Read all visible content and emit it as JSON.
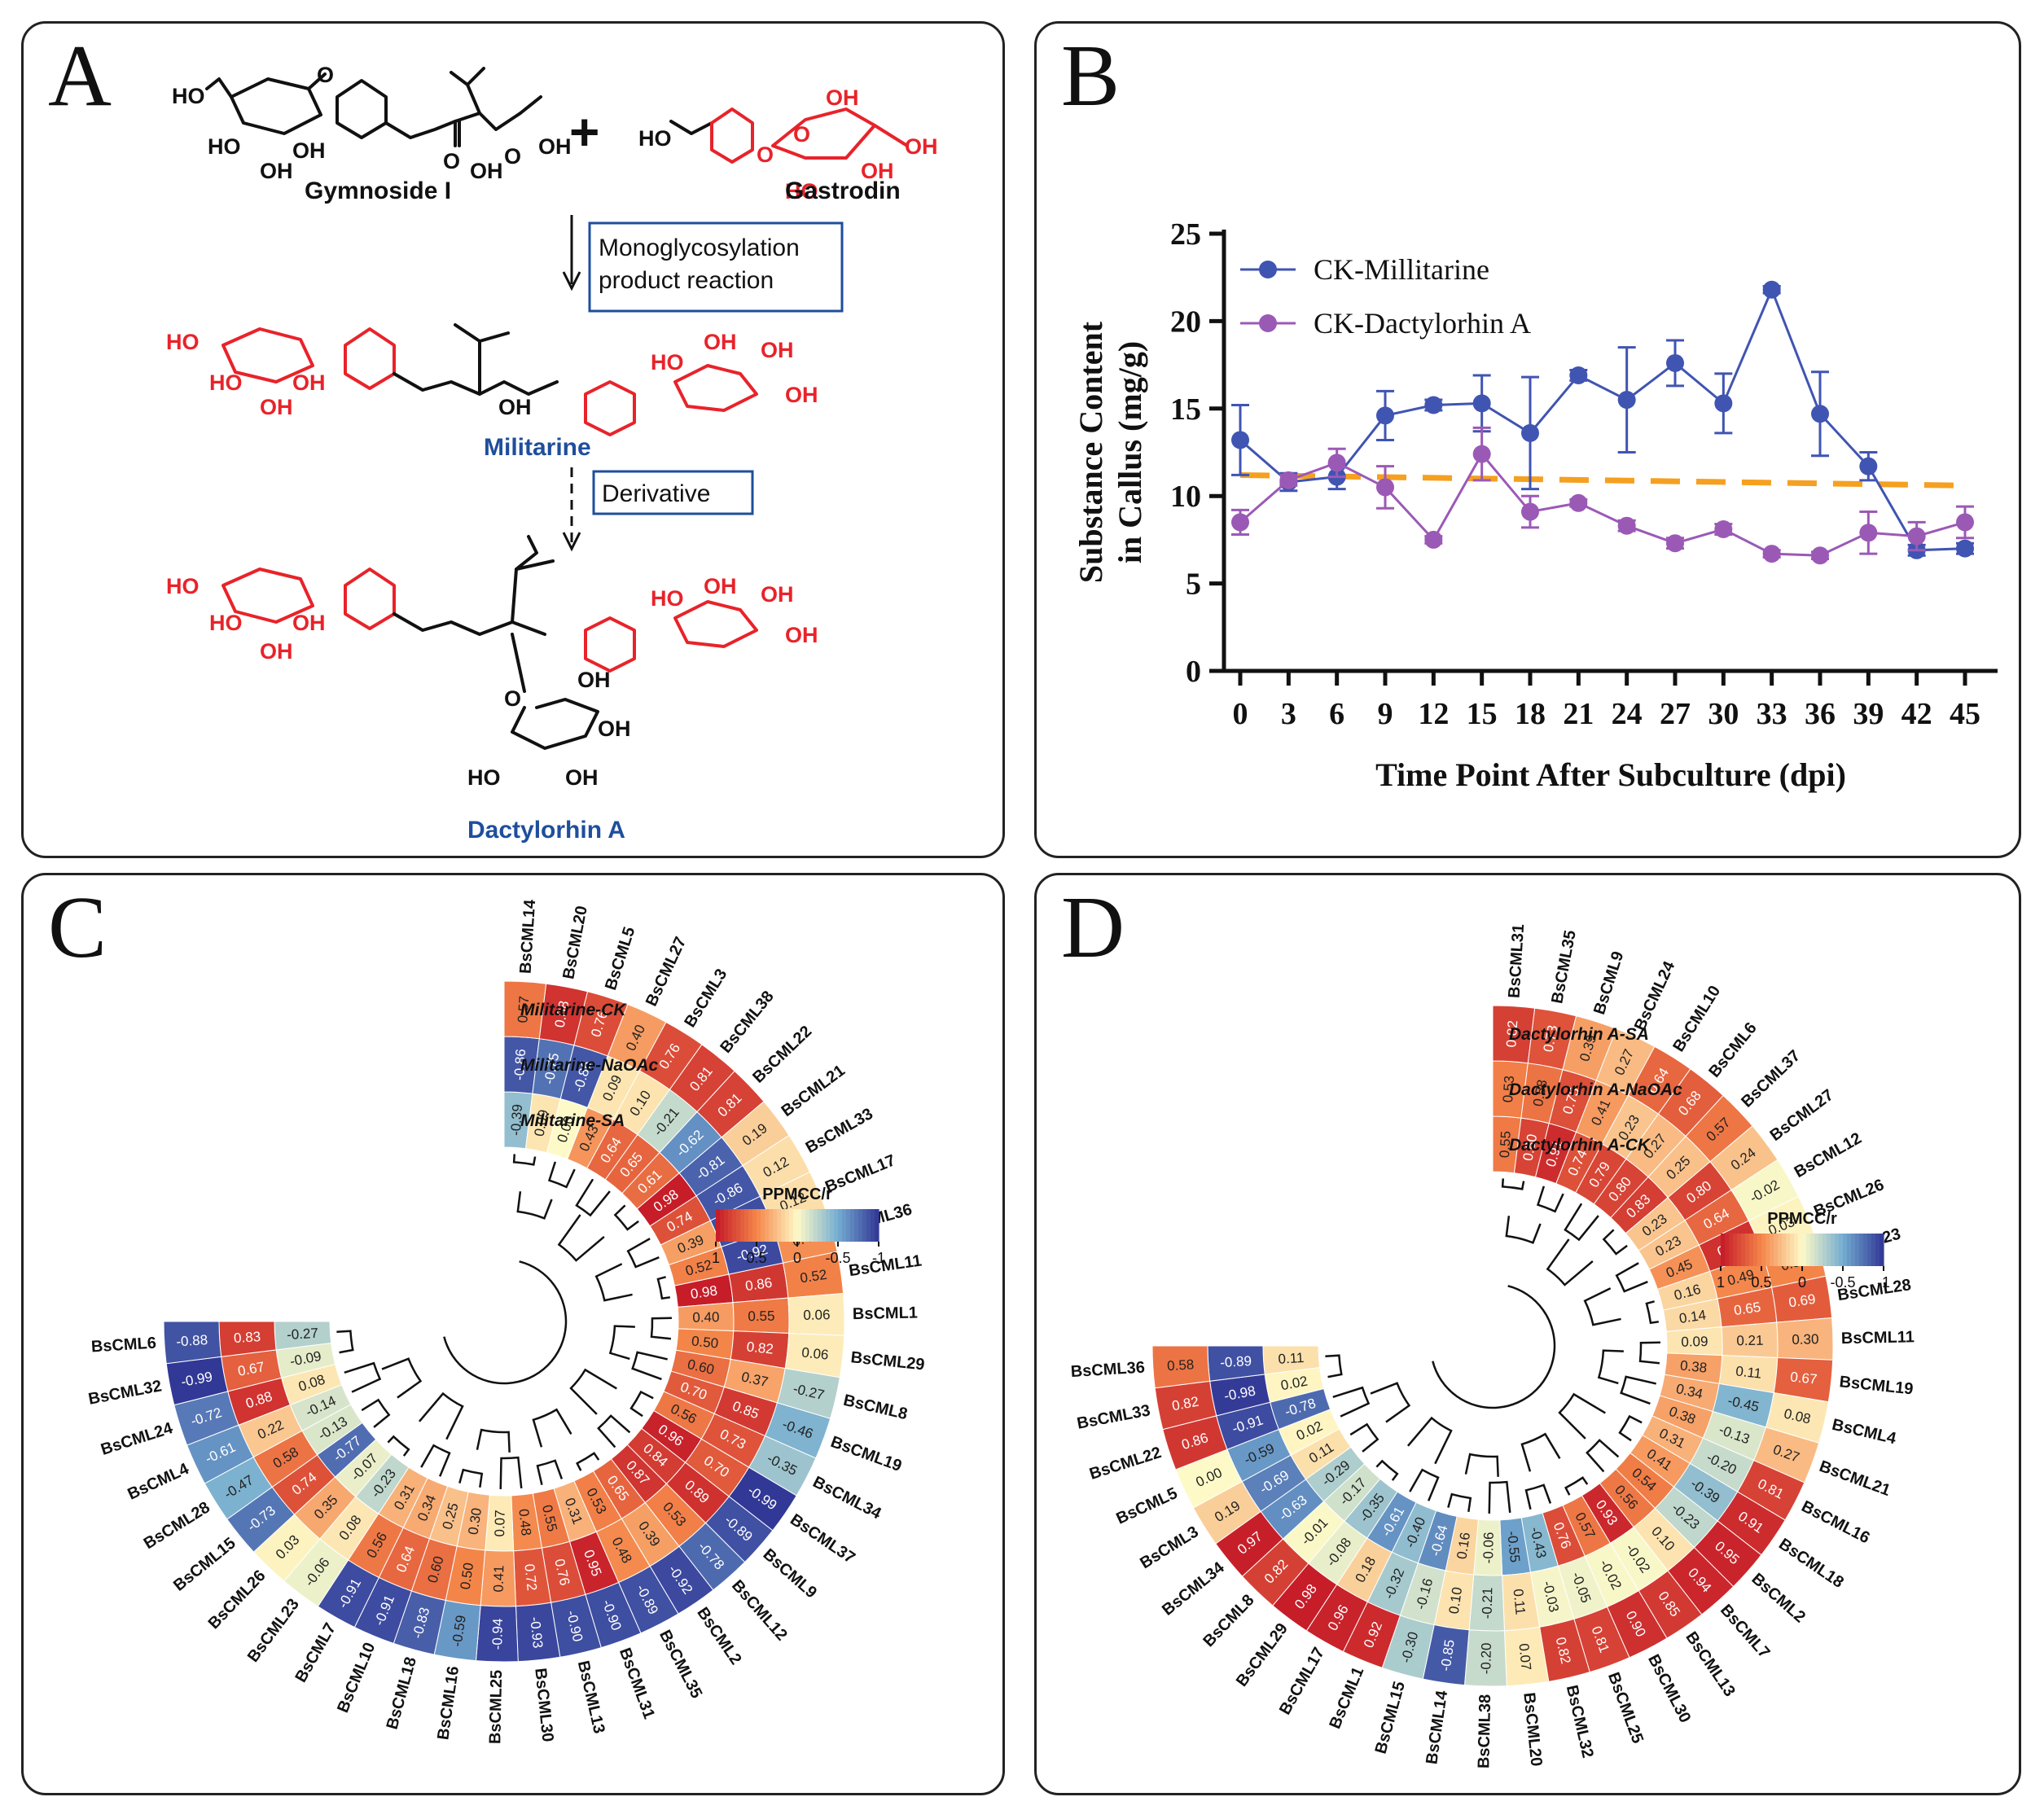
{
  "panels": {
    "a": {
      "letter": "A",
      "reactant1": "Gymnoside I",
      "reactant2": "Gastrodin",
      "plus": "+",
      "step1": "Monoglycosylation product reaction",
      "product1": "Militarine",
      "step2": "Derivative",
      "product2": "Dactylorhin A",
      "atom_labels": [
        "HO",
        "OH",
        "O",
        "HO",
        "OH",
        "OH"
      ],
      "colors": {
        "red": "#e8232a",
        "blue": "#1f4e9c",
        "black": "#111111"
      }
    },
    "b": {
      "letter": "B"
    },
    "c": {
      "letter": "C"
    },
    "d": {
      "letter": "D"
    }
  },
  "chart_data": [
    {
      "type": "line",
      "panel": "B",
      "xlabel": "Time Point After Subculture (dpi)",
      "ylabel": "Substance Content in Callus (mg/g)",
      "ylabel_lines": [
        "Substance Content",
        "in Callus (mg/g)"
      ],
      "x": [
        0,
        3,
        6,
        9,
        12,
        15,
        18,
        21,
        24,
        27,
        30,
        33,
        36,
        39,
        42,
        45
      ],
      "x_ticks": [
        "0",
        "3",
        "6",
        "9",
        "12",
        "15",
        "18",
        "21",
        "24",
        "27",
        "30",
        "33",
        "36",
        "39",
        "42",
        "45"
      ],
      "y_ticks": [
        "0",
        "5",
        "10",
        "15",
        "20",
        "25"
      ],
      "ylim": [
        0,
        25
      ],
      "series": [
        {
          "name": "CK-Millitarine",
          "color": "#4054b2",
          "values": [
            13.2,
            10.8,
            11.1,
            14.6,
            15.2,
            15.3,
            13.6,
            16.9,
            15.5,
            17.6,
            15.3,
            21.8,
            14.7,
            11.7,
            6.9,
            7.0
          ],
          "errors": [
            2.0,
            0.5,
            0.7,
            1.4,
            0.3,
            1.6,
            3.2,
            0.3,
            3.0,
            1.3,
            1.7,
            0.2,
            2.4,
            0.8,
            0.3,
            0.3
          ]
        },
        {
          "name": "CK-Dactylorhin A",
          "color": "#9b59b6",
          "values": [
            8.5,
            10.9,
            11.9,
            10.5,
            7.5,
            12.4,
            9.1,
            9.6,
            8.3,
            7.3,
            8.1,
            6.7,
            6.6,
            7.9,
            7.7,
            8.5
          ],
          "errors": [
            0.7,
            0.3,
            0.8,
            1.2,
            0.2,
            1.5,
            0.9,
            0.2,
            0.3,
            0.3,
            0.3,
            0.2,
            0.2,
            1.2,
            0.8,
            0.9
          ]
        }
      ],
      "trend": {
        "color": "#f5a020",
        "from": [
          0,
          11.2
        ],
        "to": [
          45,
          10.6
        ]
      }
    },
    {
      "type": "heatmap",
      "panel": "C",
      "legend_title": "PPMCC/r",
      "legend_ticks": [
        "1",
        "0.5",
        "0",
        "-0.5",
        "-1"
      ],
      "ring_labels": [
        "Militarine-CK",
        "Militarine-NaOAc",
        "Militarine-SA"
      ],
      "genes": [
        "BsCML14",
        "BsCML20",
        "BsCML5",
        "BsCML27",
        "BsCML3",
        "BsCML38",
        "BsCML22",
        "BsCML21",
        "BsCML33",
        "BsCML17",
        "BsCML36",
        "BsCML11",
        "BsCML1",
        "BsCML29",
        "BsCML8",
        "BsCML19",
        "BsCML34",
        "BsCML37",
        "BsCML9",
        "BsCML12",
        "BsCML2",
        "BsCML35",
        "BsCML31",
        "BsCML13",
        "BsCML30",
        "BsCML25",
        "BsCML16",
        "BsCML18",
        "BsCML10",
        "BsCML7",
        "BsCML23",
        "BsCML26",
        "BsCML15",
        "BsCML28",
        "BsCML4",
        "BsCML24",
        "BsCML32",
        "BsCML6"
      ],
      "ck": [
        0.57,
        0.88,
        0.76,
        0.4,
        0.76,
        0.81,
        0.81,
        0.19,
        0.12,
        0.12,
        0.46,
        0.52,
        0.06,
        0.06,
        -0.27,
        -0.46,
        -0.35,
        -0.99,
        -0.89,
        -0.78,
        -0.92,
        -0.89,
        -0.9,
        -0.9,
        -0.93,
        -0.94,
        -0.59,
        -0.83,
        -0.91,
        -0.91,
        -0.06,
        0.03,
        -0.73,
        -0.47,
        -0.61,
        -0.72,
        -0.99,
        -0.88
      ],
      "naoac": [
        -0.86,
        -0.75,
        -0.86,
        0.09,
        0.1,
        -0.21,
        -0.62,
        -0.81,
        -0.86,
        -0.9,
        -0.92,
        0.86,
        0.55,
        0.82,
        0.37,
        0.85,
        0.73,
        0.7,
        0.89,
        0.53,
        0.39,
        0.48,
        0.95,
        0.76,
        0.72,
        0.41,
        0.5,
        0.6,
        0.64,
        0.56,
        0.08,
        0.35,
        0.74,
        0.58,
        0.22,
        0.88,
        0.67,
        0.83
      ],
      "sa": [
        -0.39,
        0.09,
        0.0,
        0.43,
        0.64,
        0.65,
        0.61,
        0.98,
        0.74,
        0.39,
        0.52,
        0.98,
        0.4,
        0.5,
        0.6,
        0.7,
        0.56,
        0.96,
        0.84,
        0.87,
        0.65,
        0.53,
        0.31,
        0.55,
        0.48,
        0.07,
        0.3,
        0.25,
        0.34,
        0.31,
        -0.23,
        -0.07,
        -0.77,
        -0.13,
        -0.14,
        0.08,
        -0.09,
        -0.27
      ]
    },
    {
      "type": "heatmap",
      "panel": "D",
      "legend_title": "PPMCC/r",
      "legend_ticks": [
        "1",
        "0.5",
        "0",
        "-0.5",
        "-1"
      ],
      "ring_labels": [
        "Dactylorhin A-SA",
        "Dactylorhin A-NaOAc",
        "Dactylorhin A-CK"
      ],
      "genes": [
        "BsCML31",
        "BsCML35",
        "BsCML9",
        "BsCML24",
        "BsCML10",
        "BsCML6",
        "BsCML37",
        "BsCML27",
        "BsCML12",
        "BsCML26",
        "BsCML23",
        "BsCML28",
        "BsCML11",
        "BsCML19",
        "BsCML4",
        "BsCML21",
        "BsCML16",
        "BsCML18",
        "BsCML2",
        "BsCML7",
        "BsCML13",
        "BsCML30",
        "BsCML25",
        "BsCML32",
        "BsCML20",
        "BsCML38",
        "BsCML14",
        "BsCML15",
        "BsCML1",
        "BsCML17",
        "BsCML29",
        "BsCML8",
        "BsCML34",
        "BsCML3",
        "BsCML5",
        "BsCML22",
        "BsCML33",
        "BsCML36"
      ],
      "sa": [
        0.82,
        0.73,
        0.39,
        0.27,
        0.64,
        0.68,
        0.57,
        0.24,
        -0.02,
        0.03,
        0.5,
        0.69,
        0.3,
        0.67,
        0.08,
        0.27,
        0.81,
        0.91,
        0.95,
        0.94,
        0.85,
        0.9,
        0.81,
        0.82,
        0.07,
        -0.2,
        -0.85,
        -0.3,
        0.92,
        0.96,
        0.98,
        0.82,
        0.97,
        0.19,
        0.0,
        0.86,
        0.82,
        0.58
      ],
      "naoac": [
        0.53,
        0.58,
        0.75,
        0.41,
        0.23,
        0.27,
        0.25,
        0.8,
        0.64,
        0.89,
        0.49,
        0.65,
        0.21,
        0.11,
        -0.45,
        -0.13,
        -0.2,
        -0.39,
        -0.23,
        0.1,
        -0.02,
        -0.02,
        -0.05,
        -0.03,
        0.11,
        -0.21,
        0.1,
        -0.16,
        -0.32,
        0.18,
        -0.08,
        -0.01,
        -0.63,
        -0.69,
        -0.59,
        -0.91,
        -0.98,
        -0.89
      ],
      "ck": [
        0.55,
        0.8,
        0.91,
        0.74,
        0.79,
        0.8,
        0.83,
        0.23,
        0.23,
        0.45,
        0.16,
        0.14,
        0.09,
        0.38,
        0.34,
        0.38,
        0.31,
        0.41,
        0.54,
        0.56,
        0.93,
        0.57,
        0.76,
        -0.43,
        -0.55,
        -0.06,
        0.16,
        -0.64,
        -0.4,
        -0.61,
        -0.35,
        -0.17,
        -0.29,
        0.11,
        0.02,
        -0.78,
        0.02,
        0.11
      ]
    }
  ]
}
